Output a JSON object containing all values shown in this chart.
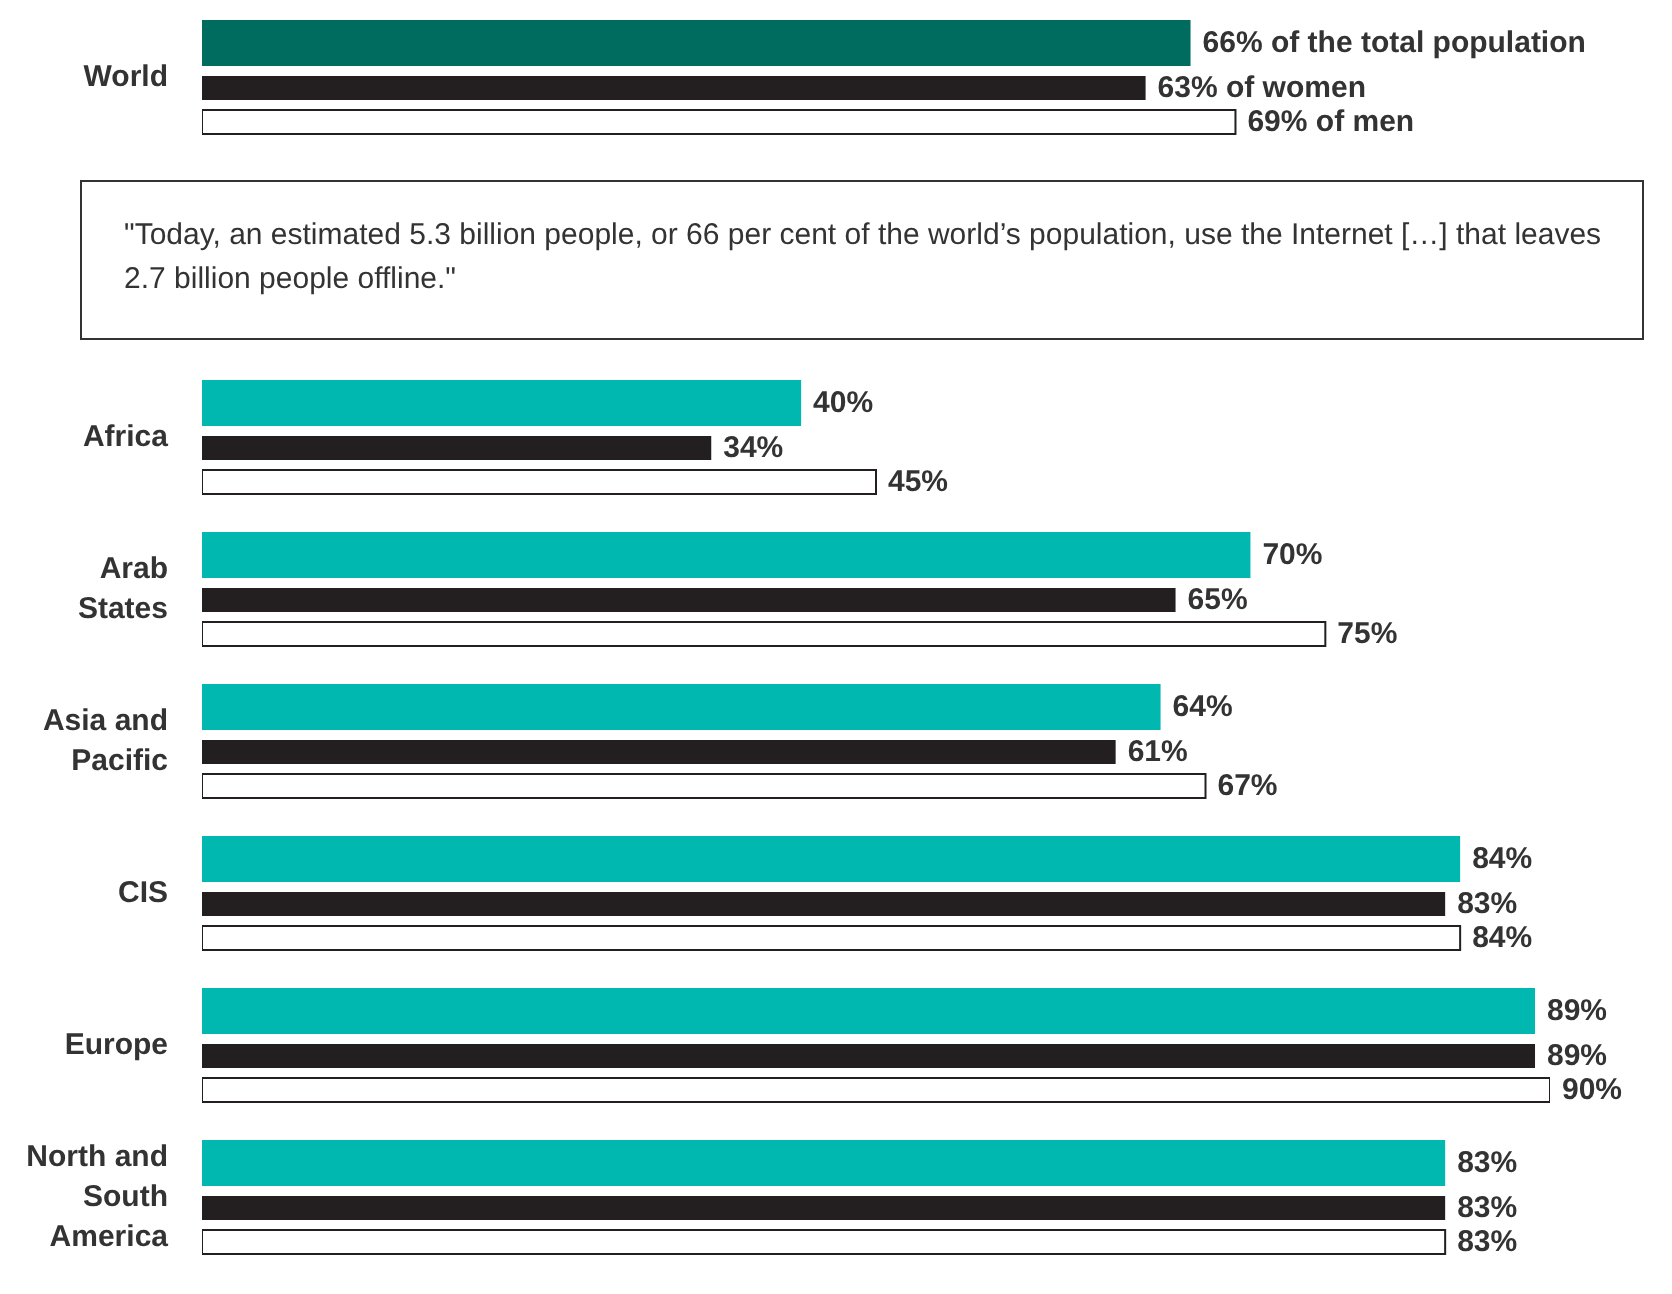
{
  "chart_data": [
    {
      "type": "bar",
      "orientation": "horizontal",
      "categories": [
        "World"
      ],
      "series": [
        {
          "color": "#006b5f",
          "values": [
            66
          ],
          "value_labels": [
            "66% of the total population"
          ]
        },
        {
          "color": "#231f20",
          "values": [
            63
          ],
          "value_labels": [
            "63% of women"
          ]
        },
        {
          "color": "#ffffff",
          "values": [
            69
          ],
          "value_labels": [
            "69% of men"
          ]
        }
      ],
      "annotations": [
        "\"Today, an estimated 5.3 billion people, or 66 per cent of the world’s population, use the Internet […] that leaves 2.7 billion people offline.\""
      ]
    },
    {
      "type": "bar",
      "orientation": "horizontal",
      "categories": [
        "Africa",
        "Arab States",
        "Asia and Pacific",
        "CIS",
        "Europe",
        "North and South America"
      ],
      "series": [
        {
          "color": "#00b8b0",
          "values": [
            40,
            70,
            64,
            84,
            89,
            83
          ],
          "value_labels": [
            "40%",
            "70%",
            "64%",
            "84%",
            "89%",
            "83%"
          ]
        },
        {
          "color": "#231f20",
          "values": [
            34,
            65,
            61,
            83,
            89,
            83
          ],
          "value_labels": [
            "34%",
            "65%",
            "61%",
            "83%",
            "89%",
            "83%"
          ]
        },
        {
          "color": "#ffffff",
          "values": [
            45,
            75,
            67,
            84,
            90,
            83
          ],
          "value_labels": [
            "45%",
            "75%",
            "67%",
            "84%",
            "90%",
            "83%"
          ]
        }
      ]
    }
  ]
}
